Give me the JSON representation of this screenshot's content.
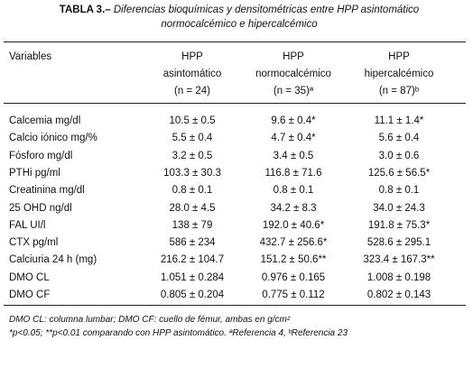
{
  "title": {
    "label": "TABLA 3.–",
    "lines": [
      "Diferencias bioquímicas y densitométricas entre HPP asintomático",
      "normocalcémico e hipercalcémico"
    ]
  },
  "table": {
    "header": {
      "first": "Variables",
      "columns": [
        [
          "HPP",
          "asintomático",
          "(n = 24)"
        ],
        [
          "HPP",
          "normocalcémico",
          "(n = 35)ª"
        ],
        [
          "HPP",
          "hipercalcémico",
          "(n = 87)ᵇ"
        ]
      ]
    },
    "rows": [
      [
        "Calcemia mg/dl",
        "10.5 ± 0.5",
        "9.6 ± 0.4*",
        "11.1 ± 1.4*"
      ],
      [
        "Calcio iónico mg/%",
        "5.5 ± 0.4",
        "4.7 ± 0.4*",
        "5.6 ± 0.4"
      ],
      [
        "Fósforo mg/dl",
        "3.2 ± 0.5",
        "3.4 ± 0.5",
        "3.0 ± 0.6"
      ],
      [
        "PTHi pg/ml",
        "103.3 ± 30.3",
        "116.8 ± 71.6",
        "125.6 ± 56.5*"
      ],
      [
        "Creatinina mg/dl",
        "0.8 ± 0.1",
        "0.8 ± 0.1",
        "0.8 ± 0.1"
      ],
      [
        "25 OHD ng/dl",
        "28.0 ± 4.5",
        "34.2 ± 8.3",
        "34.0 ± 24.3"
      ],
      [
        "FAL UI/l",
        "138 ± 79",
        "192.0 ± 40.6*",
        "191.8 ± 75.3*"
      ],
      [
        "CTX pg/ml",
        "586 ± 234",
        "432.7 ± 256.6*",
        "528.6 ± 295.1"
      ],
      [
        "Calciuria 24 h (mg)",
        "216.2 ± 104.7",
        "151.2 ± 50.6**",
        "323.4 ± 167.3**"
      ],
      [
        "DMO CL",
        "1.051 ± 0.284",
        "0.976 ± 0.165",
        "1.008 ± 0.198"
      ],
      [
        "DMO CF",
        "0.805 ± 0.204",
        "0.775 ± 0.112",
        "0.802 ± 0.143"
      ]
    ]
  },
  "footnotes": [
    "DMO CL: columna lumbar; DMO CF: cuello de fémur, ambas en g/cm²",
    "*p<0.05; **p<0.01 comparando con HPP asintomático. ªReferencia 4, ᵇReferencia 23"
  ]
}
